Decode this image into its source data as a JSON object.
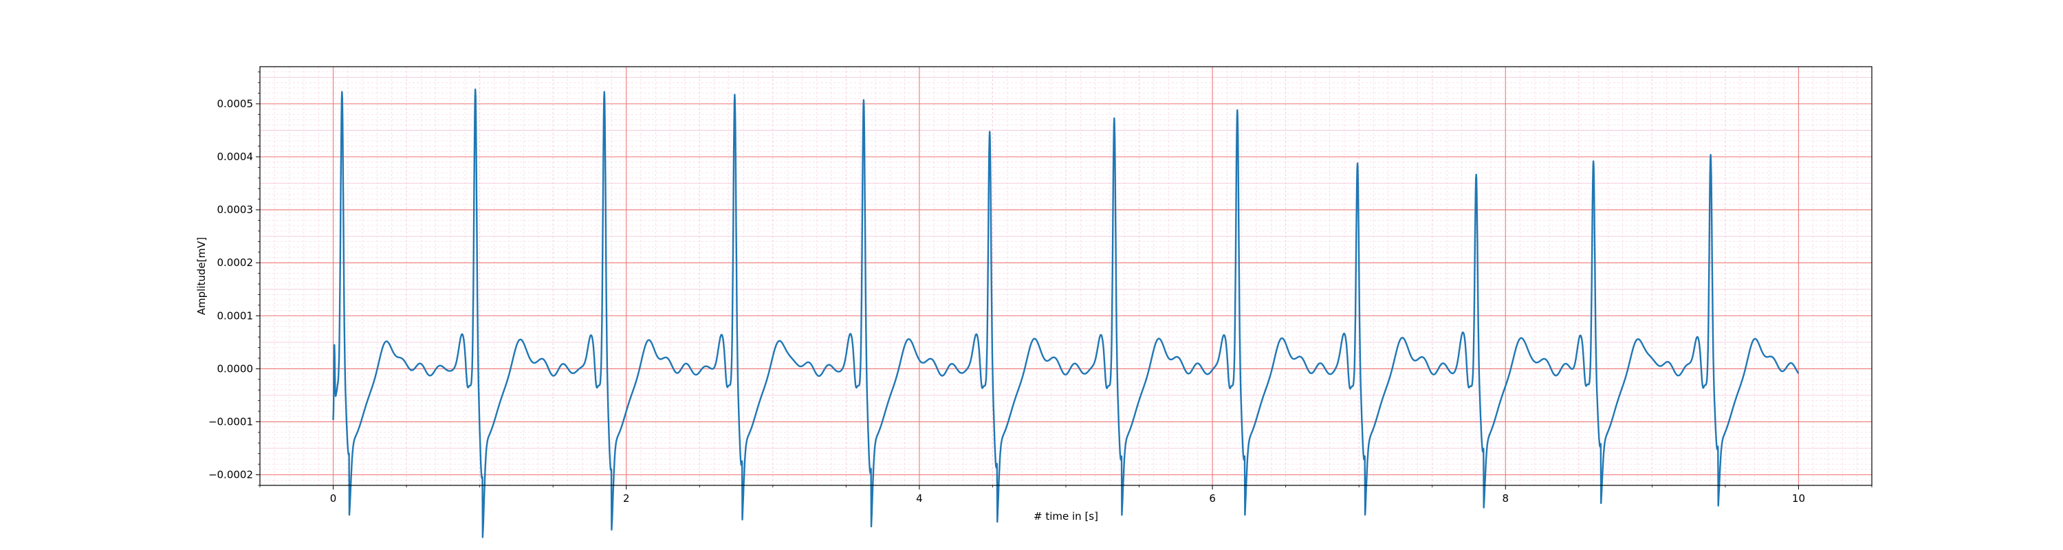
{
  "chart_data": {
    "type": "line",
    "title": "",
    "xlabel": "# time in [s]",
    "ylabel": "Amplitude[mV]",
    "xlim": [
      -0.5,
      10.5
    ],
    "ylim": [
      -0.00022,
      0.00057
    ],
    "x_ticks": [
      0,
      2,
      4,
      6,
      8,
      10
    ],
    "x_tick_labels": [
      "0",
      "2",
      "4",
      "6",
      "8",
      "10"
    ],
    "y_ticks": [
      -0.0002,
      -0.0001,
      0.0,
      0.0001,
      0.0002,
      0.0003,
      0.0004,
      0.0005
    ],
    "y_tick_labels": [
      "−0.0002",
      "−0.0001",
      "0.0000",
      "0.0001",
      "0.0002",
      "0.0003",
      "0.0004",
      "0.0005"
    ],
    "grid": {
      "major": true,
      "minor": true,
      "major_color": "#f08080",
      "minor_color": "#f7c8de"
    },
    "series": [
      {
        "color": "#1f77b4",
        "beats": [
          {
            "t": 0.06,
            "peak": 0.00053,
            "trough": -0.00014
          },
          {
            "t": 0.97,
            "peak": 0.000535,
            "trough": -0.000185
          },
          {
            "t": 1.85,
            "peak": 0.00053,
            "trough": -0.00017
          },
          {
            "t": 2.74,
            "peak": 0.000525,
            "trough": -0.00016
          },
          {
            "t": 3.62,
            "peak": 0.000515,
            "trough": -0.000175
          },
          {
            "t": 4.48,
            "peak": 0.000455,
            "trough": -0.000165
          },
          {
            "t": 5.33,
            "peak": 0.00048,
            "trough": -0.00015
          },
          {
            "t": 6.17,
            "peak": 0.000495,
            "trough": -0.00015
          },
          {
            "t": 6.99,
            "peak": 0.000395,
            "trough": -0.00015
          },
          {
            "t": 7.8,
            "peak": 0.000375,
            "trough": -0.000135
          },
          {
            "t": 8.6,
            "peak": 0.0004,
            "trough": -0.000125
          },
          {
            "t": 9.4,
            "peak": 0.00041,
            "trough": -0.00013
          }
        ],
        "start": {
          "t": 0.0,
          "value": -0.0001
        },
        "end": {
          "t": 10.0,
          "value": 3e-05
        }
      }
    ]
  }
}
